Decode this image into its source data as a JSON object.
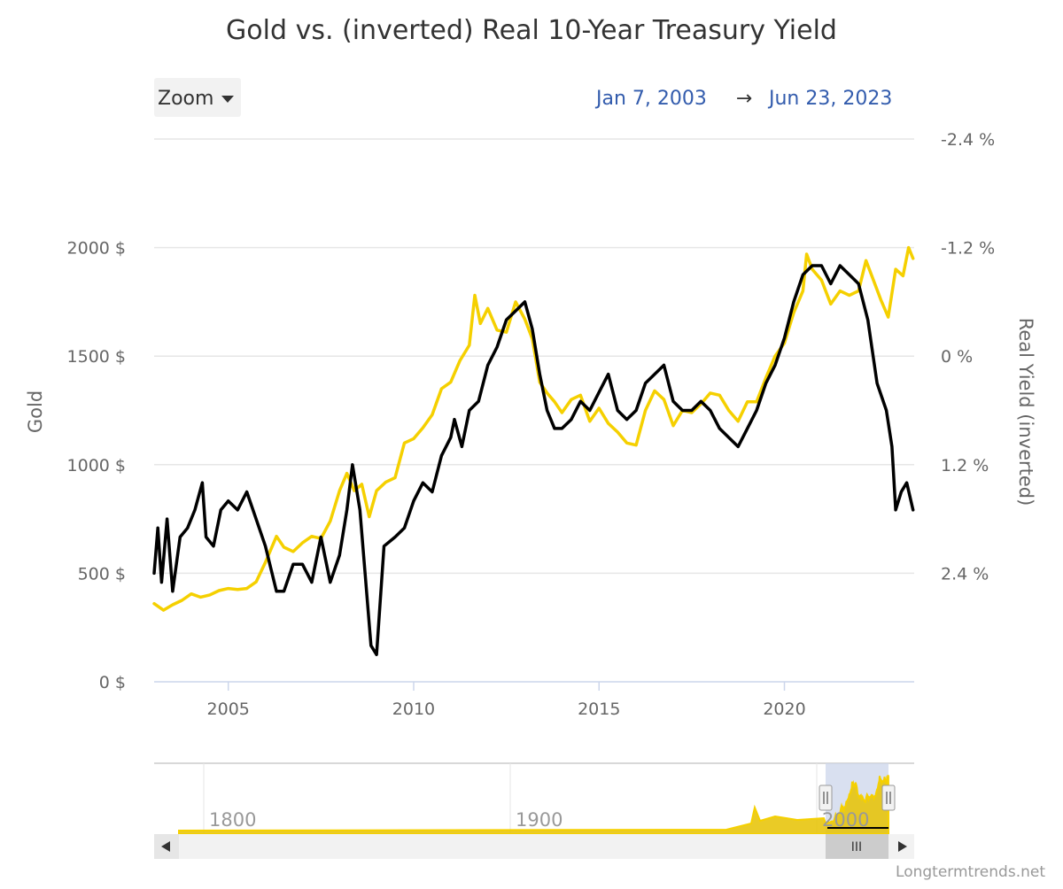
{
  "chart_data": {
    "type": "line",
    "title": "Gold vs. (inverted) Real 10-Year Treasury Yield",
    "controls": {
      "zoom_label": "Zoom",
      "range_from": "Jan 7, 2003",
      "range_arrow": "→",
      "range_to": "Jun 23, 2023"
    },
    "x_axis": {
      "ticks": [
        2005,
        2010,
        2015,
        2020
      ],
      "range": [
        2003.0,
        2023.5
      ]
    },
    "y_left": {
      "title": "Gold",
      "ticks": [
        "0 $",
        "500 $",
        "1000 $",
        "1500 $",
        "2000 $"
      ],
      "tick_values": [
        0,
        500,
        1000,
        1500,
        2000
      ],
      "range": [
        0,
        2500
      ]
    },
    "y_right": {
      "title": "Real Yield (inverted)",
      "inverted": true,
      "ticks": [
        "-2.4 %",
        "-1.2 %",
        "0 %",
        "1.2 %",
        "2.4 %"
      ],
      "tick_values": [
        -2.4,
        -1.2,
        0,
        1.2,
        2.4
      ],
      "range": [
        -2.4,
        3.6
      ]
    },
    "grid": true,
    "series": [
      {
        "name": "Gold",
        "color": "#f5d000",
        "axis": "left",
        "points": [
          [
            2003.0,
            360
          ],
          [
            2003.25,
            330
          ],
          [
            2003.5,
            355
          ],
          [
            2003.75,
            375
          ],
          [
            2004.0,
            405
          ],
          [
            2004.25,
            390
          ],
          [
            2004.5,
            400
          ],
          [
            2004.75,
            420
          ],
          [
            2005.0,
            430
          ],
          [
            2005.25,
            425
          ],
          [
            2005.5,
            430
          ],
          [
            2005.75,
            460
          ],
          [
            2006.0,
            550
          ],
          [
            2006.3,
            670
          ],
          [
            2006.5,
            620
          ],
          [
            2006.75,
            600
          ],
          [
            2007.0,
            640
          ],
          [
            2007.25,
            670
          ],
          [
            2007.5,
            660
          ],
          [
            2007.75,
            740
          ],
          [
            2008.0,
            880
          ],
          [
            2008.2,
            960
          ],
          [
            2008.4,
            880
          ],
          [
            2008.6,
            910
          ],
          [
            2008.8,
            760
          ],
          [
            2009.0,
            880
          ],
          [
            2009.25,
            920
          ],
          [
            2009.5,
            940
          ],
          [
            2009.75,
            1100
          ],
          [
            2010.0,
            1120
          ],
          [
            2010.25,
            1170
          ],
          [
            2010.5,
            1230
          ],
          [
            2010.75,
            1350
          ],
          [
            2011.0,
            1380
          ],
          [
            2011.25,
            1480
          ],
          [
            2011.5,
            1550
          ],
          [
            2011.65,
            1780
          ],
          [
            2011.8,
            1650
          ],
          [
            2012.0,
            1720
          ],
          [
            2012.25,
            1620
          ],
          [
            2012.5,
            1610
          ],
          [
            2012.75,
            1750
          ],
          [
            2013.0,
            1670
          ],
          [
            2013.2,
            1580
          ],
          [
            2013.4,
            1380
          ],
          [
            2013.6,
            1330
          ],
          [
            2013.8,
            1290
          ],
          [
            2014.0,
            1240
          ],
          [
            2014.25,
            1300
          ],
          [
            2014.5,
            1320
          ],
          [
            2014.75,
            1200
          ],
          [
            2015.0,
            1260
          ],
          [
            2015.25,
            1190
          ],
          [
            2015.5,
            1150
          ],
          [
            2015.75,
            1100
          ],
          [
            2016.0,
            1090
          ],
          [
            2016.25,
            1250
          ],
          [
            2016.5,
            1340
          ],
          [
            2016.75,
            1300
          ],
          [
            2017.0,
            1180
          ],
          [
            2017.25,
            1250
          ],
          [
            2017.5,
            1240
          ],
          [
            2017.75,
            1280
          ],
          [
            2018.0,
            1330
          ],
          [
            2018.25,
            1320
          ],
          [
            2018.5,
            1250
          ],
          [
            2018.75,
            1200
          ],
          [
            2019.0,
            1290
          ],
          [
            2019.25,
            1290
          ],
          [
            2019.5,
            1400
          ],
          [
            2019.75,
            1500
          ],
          [
            2020.0,
            1560
          ],
          [
            2020.25,
            1700
          ],
          [
            2020.5,
            1800
          ],
          [
            2020.6,
            1970
          ],
          [
            2020.75,
            1900
          ],
          [
            2021.0,
            1850
          ],
          [
            2021.25,
            1740
          ],
          [
            2021.5,
            1800
          ],
          [
            2021.75,
            1780
          ],
          [
            2022.0,
            1800
          ],
          [
            2022.2,
            1940
          ],
          [
            2022.4,
            1850
          ],
          [
            2022.6,
            1760
          ],
          [
            2022.8,
            1680
          ],
          [
            2023.0,
            1900
          ],
          [
            2023.2,
            1870
          ],
          [
            2023.35,
            2000
          ],
          [
            2023.47,
            1950
          ]
        ]
      },
      {
        "name": "Real Yield (inverted)",
        "color": "#000000",
        "axis": "right",
        "points": [
          [
            2003.0,
            2.4
          ],
          [
            2003.1,
            1.9
          ],
          [
            2003.2,
            2.5
          ],
          [
            2003.35,
            1.8
          ],
          [
            2003.5,
            2.6
          ],
          [
            2003.7,
            2.0
          ],
          [
            2003.9,
            1.9
          ],
          [
            2004.1,
            1.7
          ],
          [
            2004.3,
            1.4
          ],
          [
            2004.4,
            2.0
          ],
          [
            2004.6,
            2.1
          ],
          [
            2004.8,
            1.7
          ],
          [
            2005.0,
            1.6
          ],
          [
            2005.25,
            1.7
          ],
          [
            2005.5,
            1.5
          ],
          [
            2005.75,
            1.8
          ],
          [
            2006.0,
            2.1
          ],
          [
            2006.3,
            2.6
          ],
          [
            2006.5,
            2.6
          ],
          [
            2006.75,
            2.3
          ],
          [
            2007.0,
            2.3
          ],
          [
            2007.25,
            2.5
          ],
          [
            2007.5,
            2.0
          ],
          [
            2007.75,
            2.5
          ],
          [
            2008.0,
            2.2
          ],
          [
            2008.2,
            1.7
          ],
          [
            2008.35,
            1.2
          ],
          [
            2008.55,
            1.7
          ],
          [
            2008.85,
            3.2
          ],
          [
            2009.0,
            3.3
          ],
          [
            2009.2,
            2.1
          ],
          [
            2009.5,
            2.0
          ],
          [
            2009.75,
            1.9
          ],
          [
            2010.0,
            1.6
          ],
          [
            2010.25,
            1.4
          ],
          [
            2010.5,
            1.5
          ],
          [
            2010.75,
            1.1
          ],
          [
            2011.0,
            0.9
          ],
          [
            2011.1,
            0.7
          ],
          [
            2011.3,
            1.0
          ],
          [
            2011.5,
            0.6
          ],
          [
            2011.75,
            0.5
          ],
          [
            2012.0,
            0.1
          ],
          [
            2012.25,
            -0.1
          ],
          [
            2012.5,
            -0.4
          ],
          [
            2012.75,
            -0.5
          ],
          [
            2013.0,
            -0.6
          ],
          [
            2013.2,
            -0.3
          ],
          [
            2013.4,
            0.2
          ],
          [
            2013.6,
            0.6
          ],
          [
            2013.8,
            0.8
          ],
          [
            2014.0,
            0.8
          ],
          [
            2014.25,
            0.7
          ],
          [
            2014.5,
            0.5
          ],
          [
            2014.75,
            0.6
          ],
          [
            2015.0,
            0.4
          ],
          [
            2015.25,
            0.2
          ],
          [
            2015.5,
            0.6
          ],
          [
            2015.75,
            0.7
          ],
          [
            2016.0,
            0.6
          ],
          [
            2016.25,
            0.3
          ],
          [
            2016.5,
            0.2
          ],
          [
            2016.75,
            0.1
          ],
          [
            2017.0,
            0.5
          ],
          [
            2017.25,
            0.6
          ],
          [
            2017.5,
            0.6
          ],
          [
            2017.75,
            0.5
          ],
          [
            2018.0,
            0.6
          ],
          [
            2018.25,
            0.8
          ],
          [
            2018.5,
            0.9
          ],
          [
            2018.75,
            1.0
          ],
          [
            2019.0,
            0.8
          ],
          [
            2019.25,
            0.6
          ],
          [
            2019.5,
            0.3
          ],
          [
            2019.75,
            0.1
          ],
          [
            2020.0,
            -0.2
          ],
          [
            2020.25,
            -0.6
          ],
          [
            2020.5,
            -0.9
          ],
          [
            2020.75,
            -1.0
          ],
          [
            2021.0,
            -1.0
          ],
          [
            2021.25,
            -0.8
          ],
          [
            2021.5,
            -1.0
          ],
          [
            2021.75,
            -0.9
          ],
          [
            2022.0,
            -0.8
          ],
          [
            2022.25,
            -0.4
          ],
          [
            2022.5,
            0.3
          ],
          [
            2022.75,
            0.6
          ],
          [
            2022.9,
            1.0
          ],
          [
            2023.0,
            1.7
          ],
          [
            2023.15,
            1.5
          ],
          [
            2023.3,
            1.4
          ],
          [
            2023.47,
            1.7
          ]
        ]
      }
    ],
    "navigator": {
      "ticks": [
        "1800",
        "1900",
        "2000"
      ],
      "scroll_grip": "III"
    },
    "credit": "Longtermtrends.net"
  }
}
